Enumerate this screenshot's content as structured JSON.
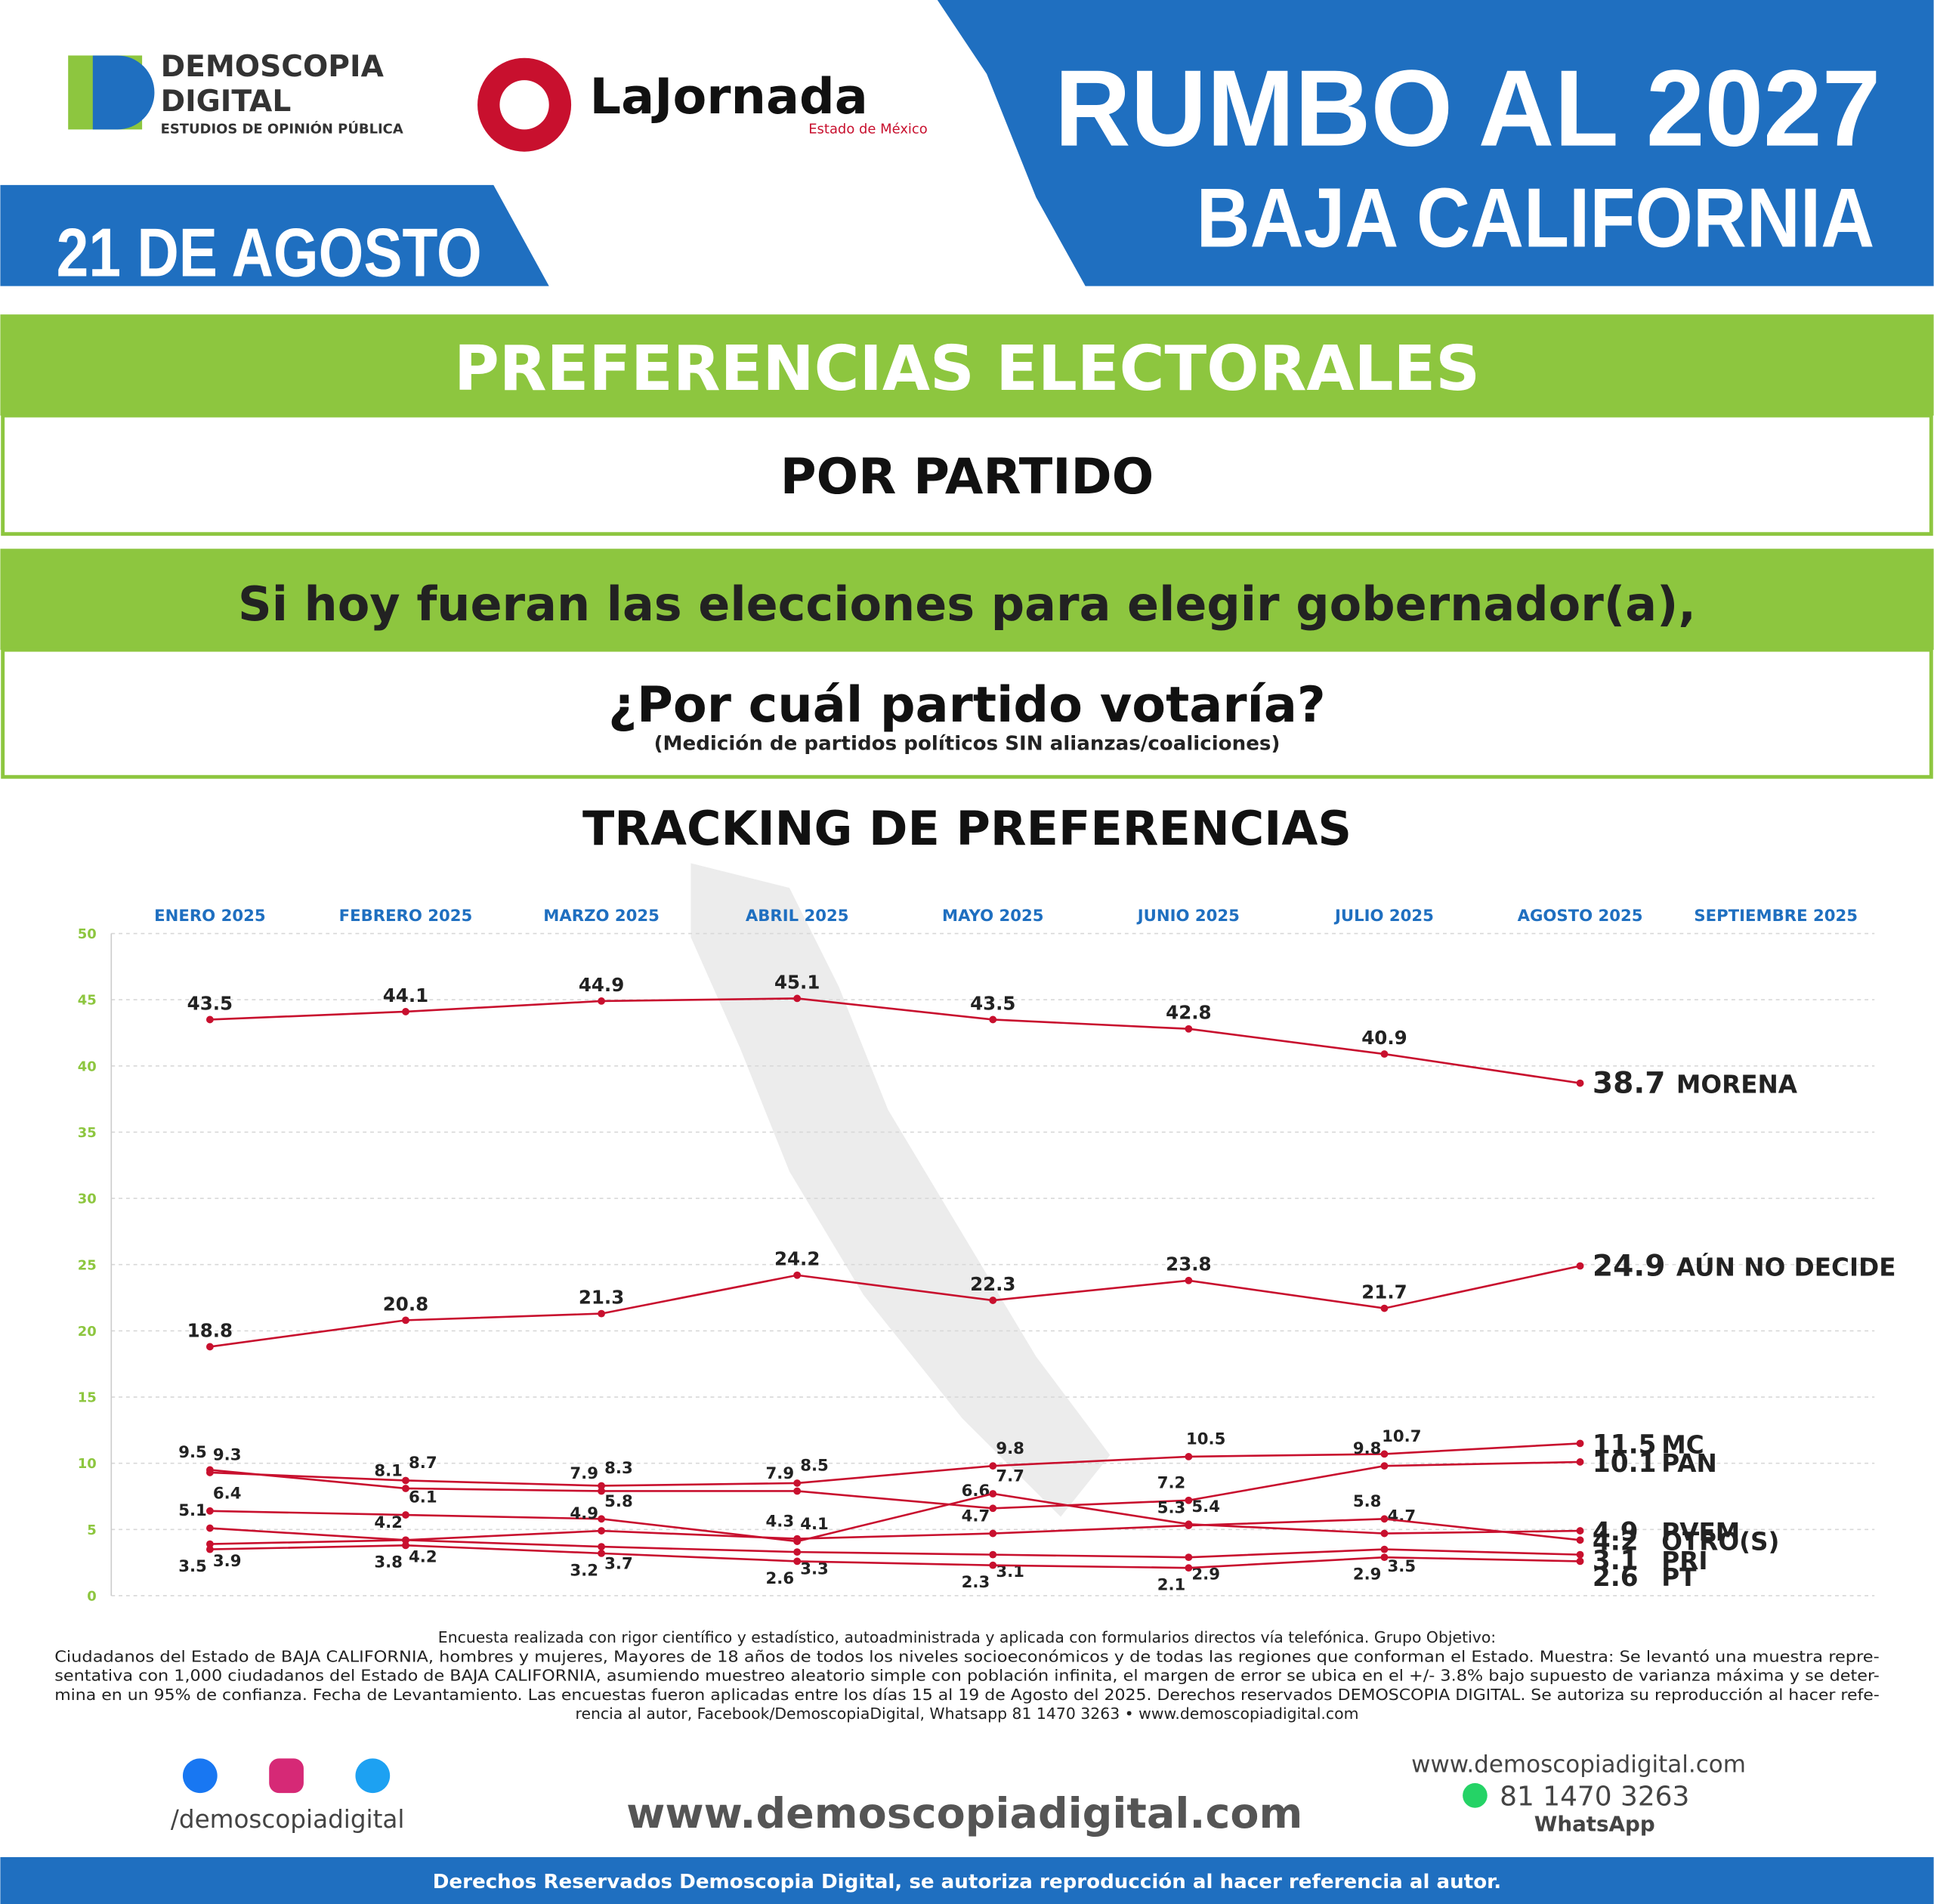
{
  "header": {
    "brand": "DEMOSCOPIA",
    "brand2": "DIGITAL",
    "brand_sub": "ESTUDIOS DE OPINIÓN PÚBLICA",
    "partner": "LaJornada",
    "partner_sub": "Estado de México",
    "headline": "RUMBO AL 2027",
    "headline2": "BAJA CALIFORNIA",
    "date": "21 DE AGOSTO"
  },
  "section": {
    "title": "PREFERENCIAS ELECTORALES",
    "subtitle": "POR PARTIDO",
    "question1": "Si hoy fueran las elecciones para elegir gobernador(a),",
    "question2": "¿Por cuál partido votaría?",
    "note": "(Medición de partidos políticos SIN alianzas/coaliciones)"
  },
  "chart_data": {
    "type": "line",
    "title": "TRACKING DE PREFERENCIAS",
    "categories": [
      "ENERO 2025",
      "FEBRERO 2025",
      "MARZO 2025",
      "ABRIL 2025",
      "MAYO 2025",
      "JUNIO 2025",
      "JULIO 2025",
      "AGOSTO 2025",
      "SEPTIEMBRE 2025"
    ],
    "ylim": [
      0,
      50
    ],
    "yticks": [
      0,
      5,
      10,
      15,
      20,
      25,
      30,
      35,
      40,
      45,
      50
    ],
    "grid": true,
    "series": [
      {
        "name": "MORENA",
        "color": "#c8102e",
        "values": [
          43.5,
          44.1,
          44.9,
          45.1,
          43.5,
          42.8,
          40.9,
          38.7,
          null
        ]
      },
      {
        "name": "AÚN NO DECIDE",
        "color": "#c8102e",
        "values": [
          18.8,
          20.8,
          21.3,
          24.2,
          22.3,
          23.8,
          21.7,
          24.9,
          null
        ]
      },
      {
        "name": "MC",
        "color": "#c8102e",
        "values": [
          9.3,
          8.7,
          8.3,
          8.5,
          9.8,
          10.5,
          10.7,
          11.5,
          null
        ]
      },
      {
        "name": "PAN",
        "color": "#c8102e",
        "values": [
          9.5,
          8.1,
          7.9,
          7.9,
          6.6,
          7.2,
          9.8,
          10.1,
          null
        ]
      },
      {
        "name": "PVEM",
        "color": "#c8102e",
        "values": [
          6.4,
          6.1,
          5.8,
          4.1,
          7.7,
          5.4,
          4.7,
          4.9,
          null
        ]
      },
      {
        "name": "OTRO(S)",
        "color": "#c8102e",
        "values": [
          5.1,
          4.2,
          4.9,
          4.3,
          4.7,
          5.3,
          5.8,
          4.2,
          null
        ]
      },
      {
        "name": "PRI",
        "color": "#c8102e",
        "values": [
          3.9,
          4.2,
          3.7,
          3.3,
          3.1,
          2.9,
          3.5,
          3.1,
          null
        ]
      },
      {
        "name": "PT",
        "color": "#c8102e",
        "values": [
          3.5,
          3.8,
          3.2,
          2.6,
          2.3,
          2.1,
          2.9,
          2.6,
          null
        ]
      }
    ]
  },
  "footer": {
    "method": [
      "Encuesta realizada con rigor científico y estadístico, autoadministrada y aplicada con formularios directos vía telefónica. Grupo Objetivo:",
      "Ciudadanos del Estado de BAJA CALIFORNIA, hombres y mujeres, Mayores de 18 años de todos los niveles socioeconómicos y de todas las regiones que conforman el Estado. Muestra: Se levantó una muestra repre-",
      "sentativa con 1,000 ciudadanos del Estado de BAJA CALIFORNIA, asumiendo muestreo aleatorio simple con población infinita, el margen de error se ubica en el +/- 3.8% bajo supuesto de varianza máxima y se deter-",
      "mina en un 95% de confianza. Fecha de Levantamiento. Las encuestas fueron aplicadas entre los días 15 al 19 de Agosto del 2025. Derechos reservados DEMOSCOPIA DIGITAL. Se autoriza su reproducción al hacer refe-",
      "rencia al autor, Facebook/DemoscopiaDigital, Whatsapp 81 1470 3263 • www.demoscopiadigital.com"
    ],
    "social": "/demoscopiadigital",
    "website": "www.demoscopiadigital.com",
    "website_small": "www.demoscopiadigital.com",
    "phone": "81 1470 3263",
    "whatsapp": "WhatsApp",
    "rights": "Derechos Reservados Demoscopia Digital, se autoriza reproducción al hacer referencia al autor."
  }
}
